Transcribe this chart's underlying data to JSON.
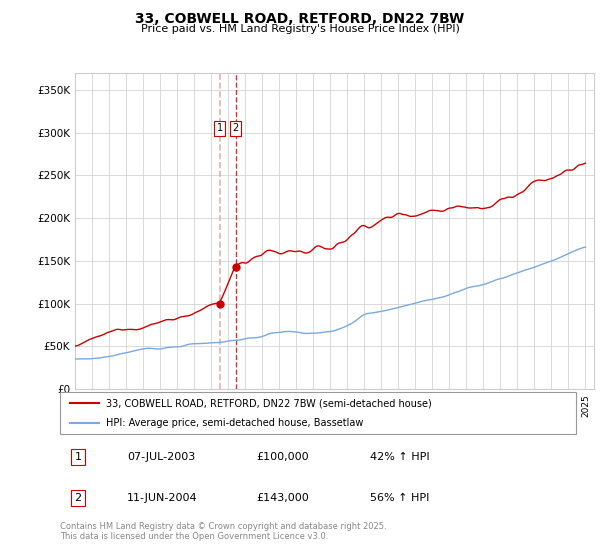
{
  "title": "33, COBWELL ROAD, RETFORD, DN22 7BW",
  "subtitle": "Price paid vs. HM Land Registry's House Price Index (HPI)",
  "ylabel_ticks": [
    "£0",
    "£50K",
    "£100K",
    "£150K",
    "£200K",
    "£250K",
    "£300K",
    "£350K"
  ],
  "ytick_vals": [
    0,
    50000,
    100000,
    150000,
    200000,
    250000,
    300000,
    350000
  ],
  "ylim": [
    0,
    370000
  ],
  "xlim_start": 1995.0,
  "xlim_end": 2025.5,
  "red_color": "#cc0000",
  "blue_color": "#7aaadd",
  "t1_vline_color": "#ddaaaa",
  "t2_vline_color": "#cc0000",
  "box_border_color": "#cc0000",
  "transaction1": {
    "date_num": 2003.52,
    "price": 100000,
    "label": "1"
  },
  "transaction2": {
    "date_num": 2004.44,
    "price": 143000,
    "label": "2"
  },
  "legend_entry1": "33, COBWELL ROAD, RETFORD, DN22 7BW (semi-detached house)",
  "legend_entry2": "HPI: Average price, semi-detached house, Bassetlaw",
  "footnote": "Contains HM Land Registry data © Crown copyright and database right 2025.\nThis data is licensed under the Open Government Licence v3.0.",
  "table_rows": [
    {
      "num": "1",
      "date": "07-JUL-2003",
      "price": "£100,000",
      "pct": "42% ↑ HPI"
    },
    {
      "num": "2",
      "date": "11-JUN-2004",
      "price": "£143,000",
      "pct": "56% ↑ HPI"
    }
  ]
}
